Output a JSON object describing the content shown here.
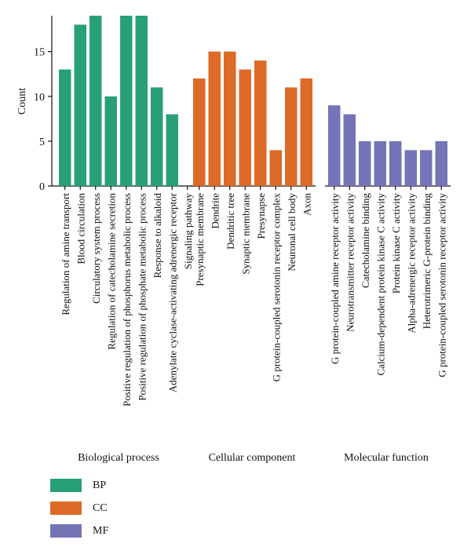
{
  "chart_data": {
    "type": "bar",
    "ylabel": "Count",
    "ylim": [
      0,
      19
    ],
    "yticks": [
      0,
      5,
      10,
      15
    ],
    "grid": false,
    "legend_placement": "bottom-left",
    "colors": {
      "BP": "#27a07a",
      "CC": "#de6a27",
      "MF": "#7474b6"
    },
    "groups": [
      {
        "name": "Biological process",
        "key": "BP",
        "categories": [
          "Regulation of amine transport",
          "Blood circulation",
          "Circulatory system process",
          "Regulation of catecholamine secretion",
          "Positive regulation of phosphorus metabolic process",
          "Positive regulation of phosphate metabolic process",
          "Response to alkaloid",
          "Adenylate cyclase-activating adrenergic receptor",
          "Signaling pathway"
        ],
        "values": [
          13,
          18,
          19,
          10,
          19,
          19,
          11,
          8,
          null
        ]
      },
      {
        "name": "Cellular component",
        "key": "CC",
        "categories": [
          "Presynaptic membrane",
          "Dendrite",
          "Dendritic tree",
          "Synaptic membrane",
          "Presynapse",
          "G protein-coupled serotonin receptor complex",
          "Neuronal cell body",
          "Axon"
        ],
        "values": [
          12,
          15,
          15,
          13,
          14,
          4,
          11,
          12
        ]
      },
      {
        "name": "Molecular function",
        "key": "MF",
        "categories": [
          "G protein-coupled amine receptor activity",
          "Neurotransmitter receptor activity",
          "Catecholamine binding",
          "Calcium-dependent protein kinase C activity",
          "Protein kinase C activity",
          "Alpha-adrenergic receptor activity",
          "Heterotrimeric G-protein binding",
          "G protein-coupled serotonin receptor activity"
        ],
        "values": [
          9,
          8,
          5,
          5,
          5,
          4,
          4,
          5
        ]
      }
    ],
    "legend": [
      {
        "label": "BP",
        "color": "#27a07a"
      },
      {
        "label": "CC",
        "color": "#de6a27"
      },
      {
        "label": "MF",
        "color": "#7474b6"
      }
    ]
  }
}
